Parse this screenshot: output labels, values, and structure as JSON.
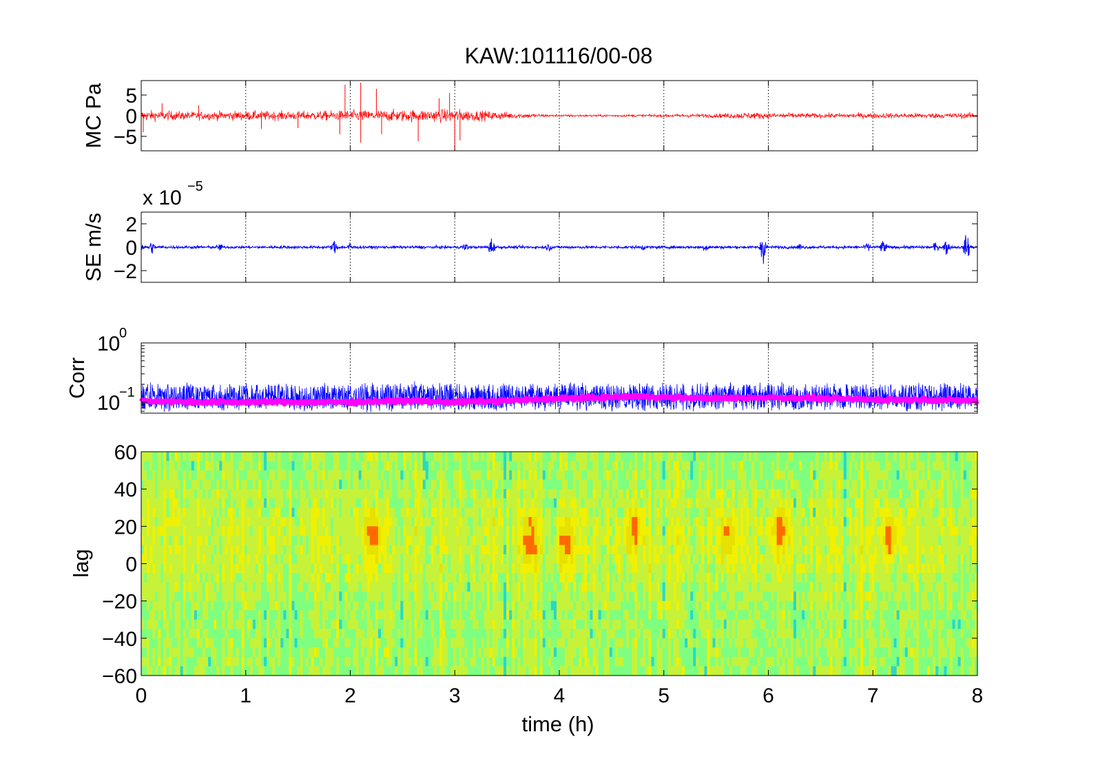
{
  "figure": {
    "title": "KAW:101116/00-08"
  },
  "chart_data": [
    {
      "type": "line",
      "panel": "pressure",
      "ylabel": "MC Pa",
      "ylim": [
        -8.5,
        8.5
      ],
      "yticks": [
        -5,
        0,
        5
      ],
      "ytick_labels": [
        "−5",
        "0",
        "5"
      ],
      "xlim": [
        0,
        8
      ],
      "xticks": [
        0,
        1,
        2,
        3,
        4,
        5,
        6,
        7,
        8
      ],
      "grid": "x-dotted",
      "series": [
        {
          "color": "#ff0000",
          "envelope_x": [
            0,
            0.5,
            1,
            1.5,
            2,
            2.5,
            3,
            3.3,
            3.6,
            3.8,
            4,
            4.5,
            5,
            5.5,
            5.8,
            6,
            6.5,
            7,
            7.5,
            8
          ],
          "envelope_half_width": [
            1.8,
            1.4,
            1.6,
            1.5,
            1.8,
            2.0,
            2.2,
            1.6,
            1.0,
            0.6,
            0.4,
            0.4,
            0.5,
            0.7,
            1.2,
            1.0,
            0.8,
            0.9,
            0.9,
            1.0
          ],
          "spikes": [
            {
              "x": 0.02,
              "y": -4.0
            },
            {
              "x": 0.2,
              "y": 3.0
            },
            {
              "x": 0.55,
              "y": 2.5
            },
            {
              "x": 1.15,
              "y": -3.2
            },
            {
              "x": 1.5,
              "y": -3.0
            },
            {
              "x": 1.9,
              "y": -4.5
            },
            {
              "x": 2.1,
              "y": 8.0
            },
            {
              "x": 2.1,
              "y": -6.5
            },
            {
              "x": 1.95,
              "y": 7.5
            },
            {
              "x": 2.25,
              "y": 6.5
            },
            {
              "x": 2.3,
              "y": -4.5
            },
            {
              "x": 2.65,
              "y": -6.2
            },
            {
              "x": 2.95,
              "y": 5.5
            },
            {
              "x": 3.0,
              "y": -8.2
            },
            {
              "x": 3.05,
              "y": -6.0
            },
            {
              "x": 2.85,
              "y": 4.2
            }
          ]
        }
      ]
    },
    {
      "type": "line",
      "panel": "seismic",
      "ylabel": "SE m/s",
      "scale_label_base": "x 10",
      "scale_label_exponent": "−5",
      "ylim": [
        -3,
        3
      ],
      "yticks": [
        -2,
        0,
        2
      ],
      "ytick_labels": [
        "−2",
        "0",
        "2"
      ],
      "xlim": [
        0,
        8
      ],
      "xticks": [
        0,
        1,
        2,
        3,
        4,
        5,
        6,
        7,
        8
      ],
      "grid": "x-dotted",
      "series": [
        {
          "color": "#0000ff",
          "base_half_width": 0.15,
          "events": [
            {
              "x": 0.0,
              "amp": 0.6
            },
            {
              "x": 0.1,
              "amp": 0.8
            },
            {
              "x": 0.75,
              "amp": 0.5
            },
            {
              "x": 1.85,
              "amp": 0.9
            },
            {
              "x": 2.0,
              "amp": 0.7
            },
            {
              "x": 3.1,
              "amp": 0.6
            },
            {
              "x": 3.35,
              "amp": 1.1
            },
            {
              "x": 3.9,
              "amp": 0.5
            },
            {
              "x": 4.8,
              "amp": 0.4
            },
            {
              "x": 5.4,
              "amp": 0.6
            },
            {
              "x": 5.95,
              "amp": 1.8
            },
            {
              "x": 6.3,
              "amp": 0.5
            },
            {
              "x": 6.95,
              "amp": 0.6
            },
            {
              "x": 7.1,
              "amp": 0.9
            },
            {
              "x": 7.6,
              "amp": 0.6
            },
            {
              "x": 7.7,
              "amp": 1.0
            },
            {
              "x": 7.9,
              "amp": 1.6
            }
          ]
        }
      ]
    },
    {
      "type": "line",
      "panel": "correlation",
      "ylabel": "Corr",
      "yscale": "log",
      "ylim": [
        0.065,
        1.0
      ],
      "ytick_labels": [
        {
          "base": "10",
          "exp": "0",
          "value": 1.0
        },
        {
          "base": "10",
          "exp": "−1",
          "value": 0.1
        }
      ],
      "xlim": [
        0,
        8
      ],
      "xticks": [
        0,
        1,
        2,
        3,
        4,
        5,
        6,
        7,
        8
      ],
      "grid": "x-dotted",
      "series": [
        {
          "color": "#0000ff",
          "kind": "max-correlation",
          "typical_range": [
            0.075,
            0.2
          ]
        },
        {
          "color": "#ff00ff",
          "kind": "smoothed",
          "x": [
            0,
            0.5,
            1,
            1.5,
            2,
            2.5,
            3,
            3.5,
            4,
            4.5,
            4.7,
            5,
            5.5,
            6,
            6.5,
            7,
            7.5,
            8
          ],
          "y": [
            0.105,
            0.1,
            0.1,
            0.1,
            0.1,
            0.105,
            0.1,
            0.105,
            0.115,
            0.12,
            0.125,
            0.12,
            0.115,
            0.12,
            0.115,
            0.11,
            0.11,
            0.105
          ]
        }
      ]
    },
    {
      "type": "heatmap",
      "panel": "lag",
      "ylabel": "lag",
      "xlabel": "time (h)",
      "ylim": [
        -60,
        60
      ],
      "yticks": [
        60,
        40,
        20,
        0,
        -20,
        -40,
        -60
      ],
      "ytick_labels": [
        "60",
        "40",
        "20",
        "0",
        "−20",
        "−40",
        "−60"
      ],
      "xlim": [
        0,
        8
      ],
      "xticks": [
        0,
        1,
        2,
        3,
        4,
        5,
        6,
        7,
        8
      ],
      "xtick_labels": [
        "0",
        "1",
        "2",
        "3",
        "4",
        "5",
        "6",
        "7",
        "8"
      ],
      "colormap": "jet",
      "dominant_colors": [
        "#7fff7f",
        "#c6f23a",
        "#f0f000",
        "#28d8c8"
      ],
      "hotspots": [
        {
          "x": 2.2,
          "lag": 15
        },
        {
          "x": 3.7,
          "lag": 12
        },
        {
          "x": 4.05,
          "lag": 10
        },
        {
          "x": 4.7,
          "lag": 18
        },
        {
          "x": 5.6,
          "lag": 14
        },
        {
          "x": 6.1,
          "lag": 18
        },
        {
          "x": 7.15,
          "lag": 15
        }
      ]
    }
  ]
}
